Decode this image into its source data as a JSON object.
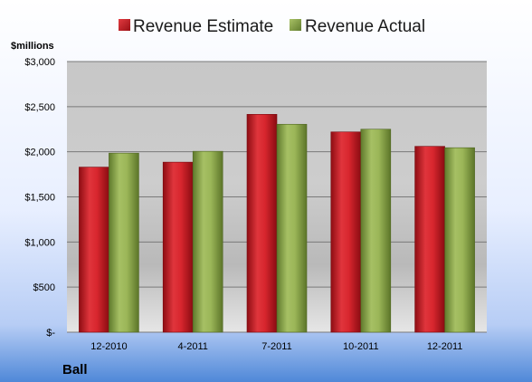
{
  "colors": {
    "estimate": "#c8202a",
    "actual": "#8faa4c"
  },
  "chart_data": {
    "type": "bar",
    "unit_label": "$millions",
    "company": "Ball",
    "categories": [
      "12-2010",
      "4-2011",
      "7-2011",
      "10-2011",
      "12-2011"
    ],
    "series": [
      {
        "name": "Revenue Estimate",
        "values": [
          1830,
          1885,
          2415,
          2220,
          2060
        ]
      },
      {
        "name": "Revenue Actual",
        "values": [
          1985,
          2005,
          2305,
          2250,
          2045
        ]
      }
    ],
    "ylim": [
      0,
      3000
    ],
    "y_ticks": [
      0,
      500,
      1000,
      1500,
      2000,
      2500,
      3000
    ],
    "y_tick_labels": [
      "$-",
      "$500",
      "$1,000",
      "$1,500",
      "$2,000",
      "$2,500",
      "$3,000"
    ],
    "grid": true,
    "legend_position": "top"
  }
}
